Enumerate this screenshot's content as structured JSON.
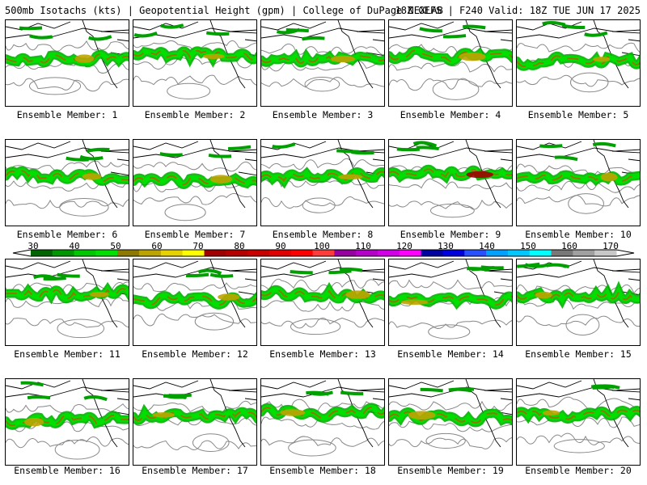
{
  "header": {
    "product": "500mb Isotachs (kts) | Geopotential Height (gpm) | College of DuPage NEXLAB",
    "run": "18Z GEFS | F240 Valid: 18Z TUE JUN 17 2025"
  },
  "panels": [
    {
      "label": "Ensemble Member: 1"
    },
    {
      "label": "Ensemble Member: 2"
    },
    {
      "label": "Ensemble Member: 3"
    },
    {
      "label": "Ensemble Member: 4"
    },
    {
      "label": "Ensemble Member: 5"
    },
    {
      "label": "Ensemble Member: 6"
    },
    {
      "label": "Ensemble Member: 7"
    },
    {
      "label": "Ensemble Member: 8"
    },
    {
      "label": "Ensemble Member: 9"
    },
    {
      "label": "Ensemble Member: 10"
    },
    {
      "label": "Ensemble Member: 11"
    },
    {
      "label": "Ensemble Member: 12"
    },
    {
      "label": "Ensemble Member: 13"
    },
    {
      "label": "Ensemble Member: 14"
    },
    {
      "label": "Ensemble Member: 15"
    },
    {
      "label": "Ensemble Member: 16"
    },
    {
      "label": "Ensemble Member: 17"
    },
    {
      "label": "Ensemble Member: 18"
    },
    {
      "label": "Ensemble Member: 19"
    },
    {
      "label": "Ensemble Member: 20"
    }
  ],
  "colorbar": {
    "ticks": [
      "30",
      "40",
      "50",
      "60",
      "70",
      "80",
      "90",
      "100",
      "110",
      "120",
      "130",
      "140",
      "150",
      "160",
      "170"
    ],
    "colors": [
      "#006400",
      "#009600",
      "#00c800",
      "#00e000",
      "#8c7a00",
      "#bca400",
      "#e6d200",
      "#ffff00",
      "#a00000",
      "#b40000",
      "#c80000",
      "#e00000",
      "#ff0000",
      "#ff3c3c",
      "#9600a0",
      "#b400c8",
      "#d200e6",
      "#ff00ff",
      "#0000a0",
      "#0000dc",
      "#2850ff",
      "#00a0ff",
      "#00c8ff",
      "#00ffff",
      "#787878",
      "#a0a0a0",
      "#c8c8c8"
    ]
  }
}
